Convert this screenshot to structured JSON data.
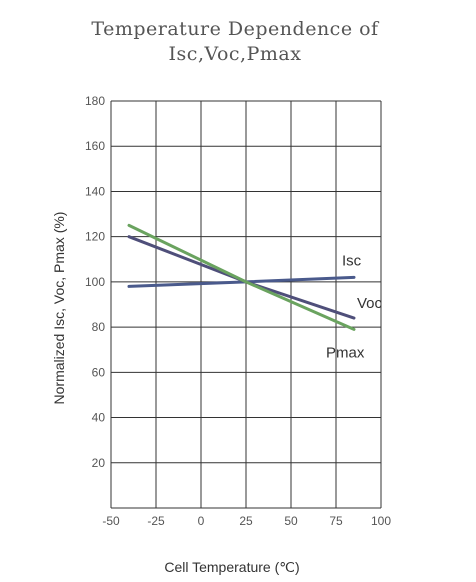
{
  "chart_data": {
    "type": "line",
    "title_line1": "Temperature Dependence of",
    "title_line2": "Isc,Voc,Pmax",
    "xlabel": "Cell Temperature (℃)",
    "ylabel": "Normalized Isc, Voc, Pmax (%)",
    "xlim": [
      -50,
      100
    ],
    "ylim": [
      0,
      180
    ],
    "x_ticks": [
      -50,
      -25,
      0,
      25,
      50,
      75,
      100
    ],
    "x_tick_labels": [
      "-50",
      "-25",
      "0",
      "25",
      "50",
      "75",
      "100"
    ],
    "y_ticks": [
      20,
      40,
      60,
      80,
      100,
      120,
      140,
      160,
      180
    ],
    "y_tick_labels": [
      "20",
      "40",
      "60",
      "80",
      "100",
      "120",
      "140",
      "160",
      "180"
    ],
    "grid": true,
    "series": [
      {
        "name": "Isc",
        "color": "#4a5a8c",
        "x": [
          -40,
          25,
          85
        ],
        "y": [
          98,
          100,
          102
        ]
      },
      {
        "name": "Voc",
        "color": "#4f4f7a",
        "x": [
          -40,
          25,
          85
        ],
        "y": [
          120,
          100,
          84
        ]
      },
      {
        "name": "Pmax",
        "color": "#6aa35f",
        "x": [
          -40,
          25,
          85
        ],
        "y": [
          125,
          100,
          79
        ]
      }
    ]
  }
}
